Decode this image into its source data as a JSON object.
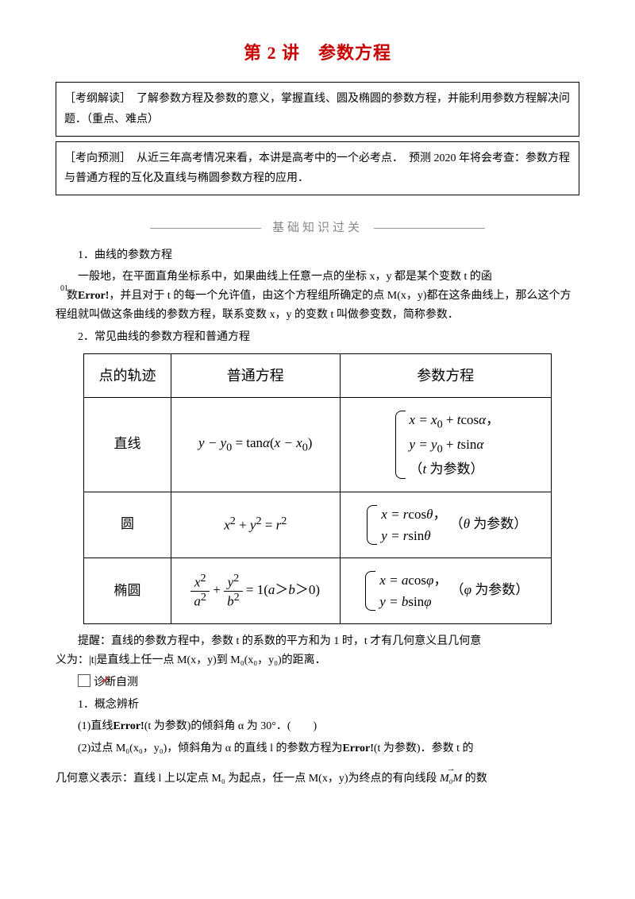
{
  "title": "第 2 讲　参数方程",
  "box1": {
    "label": "［考纲解读］",
    "text": "　了解参数方程及参数的意义，掌握直线、圆及椭圆的参数方程，并能利用参数方程解决问题．（重点、难点）"
  },
  "box2": {
    "label": "［考向预测］",
    "text": "　从近三年高考情况来看，本讲是高考中的一个必考点．　预测 2020 年将会考查：参数方程与普通方程的互化及直线与椭圆参数方程的应用．"
  },
  "section_header": "基础知识过关",
  "p1_heading": "1．曲线的参数方程",
  "p1_line1": "一般地，在平面直角坐标系中，如果曲线上任意一点的坐标 x，y 都是某个变数 t 的函",
  "p1_sup": "01",
  "p1_line2a": "数",
  "p1_line2b": "Error!",
  "p1_line2c": "，并且对于 t 的每一个允许值，由这个方程组所确定的点 M(x，y)都在这条曲线上，那么这个方程组就叫做这条曲线的参数方程，联系变数 x，y 的变数 t 叫做参变数，简称参数．",
  "p2_heading": "2．常见曲线的参数方程和普通方程",
  "table": {
    "headers": [
      "点的轨迹",
      "普通方程",
      "参数方程"
    ],
    "rows": [
      {
        "name": "直线",
        "ordinary_html": "<span class='math'>y − y</span><sub class='mathup'>0</sub> <span class='mathup'>= tan</span><span class='math'>α</span><span class='mathup'>(</span><span class='math'>x − x</span><sub class='mathup'>0</sub><span class='mathup'>)</span>",
        "param_lines": [
          "<span class='math'>x = x</span><sub class='mathup'>0</sub> <span class='mathup'>+</span> <span class='math'>t</span><span class='mathup'>cos</span><span class='math'>α</span><span class='param-note'>，</span>",
          "<span class='math'>y = y</span><sub class='mathup'>0</sub> <span class='mathup'>+</span> <span class='math'>t</span><span class='mathup'>sin</span><span class='math'>α</span>",
          "<span class='param-note'>（<span class='math'>t</span> 为参数）</span>"
        ]
      },
      {
        "name": "圆",
        "ordinary_html": "<span class='math'>x</span><sup class='mathup'>2</sup> <span class='mathup'>+</span> <span class='math'>y</span><sup class='mathup'>2</sup> <span class='mathup'>=</span> <span class='math'>r</span><sup class='mathup'>2</sup>",
        "param_lines": [
          "<span class='math'>x = r</span><span class='mathup'>cos</span><span class='math'>θ</span><span class='param-note'>，</span>",
          "<span class='math'>y = r</span><span class='mathup'>sin</span><span class='math'>θ</span>"
        ],
        "param_suffix": "（<span class='math'>θ</span> 为参数）"
      },
      {
        "name": "椭圆",
        "ordinary_frac": {
          "t1_num": "<span class='math'>x</span><sup class='mathup'>2</sup>",
          "t1_den": "<span class='math'>a</span><sup class='mathup'>2</sup>",
          "t2_num": "<span class='math'>y</span><sup class='mathup'>2</sup>",
          "t2_den": "<span class='math'>b</span><sup class='mathup'>2</sup>",
          "rest": " <span class='mathup'>= 1(</span><span class='math'>a</span><span class='mathup'>＞</span><span class='math'>b</span><span class='mathup'>＞0)</span>"
        },
        "param_lines": [
          "<span class='math'>x = a</span><span class='mathup'>cos</span><span class='math'>φ</span><span class='param-note'>，</span>",
          "<span class='math'>y = b</span><span class='mathup'>sin</span><span class='math'>φ</span>"
        ],
        "param_suffix": "（<span class='math'>φ</span> 为参数）"
      }
    ]
  },
  "hint_line1": "提醒：直线的参数方程中，参数 t 的系数的平方和为 1 时，t 才有几何意义且几何意",
  "hint_line2": "义为：|t|是直线上任一点 M(x，y)到 M₀(x₀，y₀)的距离．",
  "diag_heading": "诊断自测",
  "q1_heading": "1．概念辨析",
  "q1_1a": "(1)直线",
  "q1_1b": "Error!",
  "q1_1c": "(t 为参数)的倾斜角 α 为 30°．(　　)",
  "q1_2a": "(2)过点 M₀(x₀，y₀)，倾斜角为 α 的直线 l 的参数方程为",
  "q1_2b": "Error!",
  "q1_2c": "(t 为参数)．参数 t 的",
  "q1_3a": "几何意义表示：直线 l 上以定点 M₀ 为起点，任一点 M(x，y)为终点的有向线段",
  "q1_3vec": "M₀M",
  "q1_3b": "的数"
}
